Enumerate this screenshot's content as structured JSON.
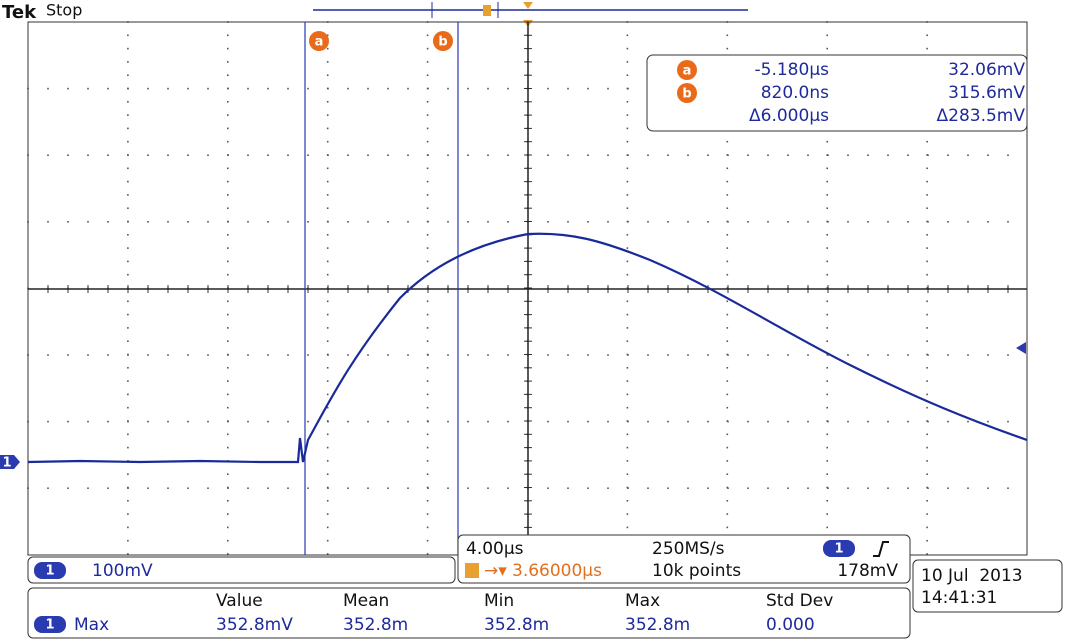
{
  "header": {
    "brand": "Tek",
    "status": "Stop"
  },
  "cursors": {
    "a_label": "a",
    "b_label": "b"
  },
  "readout": {
    "rows": [
      [
        "a",
        "-5.180µs",
        "32.06mV"
      ],
      [
        "b",
        "820.0ns",
        "315.6mV"
      ],
      [
        "",
        "Δ6.000µs",
        "Δ283.5mV"
      ]
    ]
  },
  "channel": {
    "number": "1",
    "scale": "100mV"
  },
  "timebase": {
    "scale": "4.00µs",
    "sample_rate": "250MS/s",
    "trigger_channel": "1",
    "trigger_level": "178mV",
    "trigger_position": "3.66000µs",
    "record_length": "10k points"
  },
  "clock": {
    "date": "10 Jul  2013",
    "time": "14:41:31"
  },
  "measurements": {
    "headers": [
      "Value",
      "Mean",
      "Min",
      "Max",
      "Std Dev"
    ],
    "rows": [
      {
        "channel": "1",
        "name": "Max",
        "cells": [
          "352.8mV",
          "352.8m",
          "352.8m",
          "352.8m",
          "0.000"
        ]
      }
    ]
  }
}
